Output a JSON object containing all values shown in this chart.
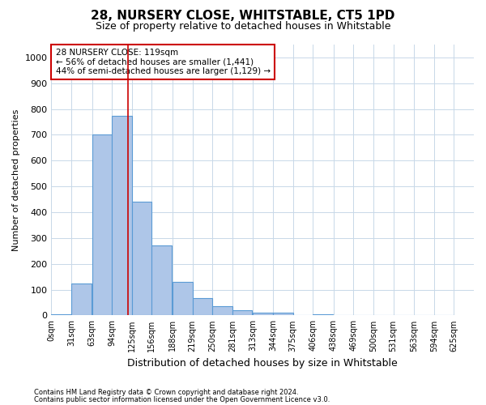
{
  "title": "28, NURSERY CLOSE, WHITSTABLE, CT5 1PD",
  "subtitle": "Size of property relative to detached houses in Whitstable",
  "xlabel": "Distribution of detached houses by size in Whitstable",
  "ylabel": "Number of detached properties",
  "footnote1": "Contains HM Land Registry data © Crown copyright and database right 2024.",
  "footnote2": "Contains public sector information licensed under the Open Government Licence v3.0.",
  "bin_labels": [
    "0sqm",
    "31sqm",
    "63sqm",
    "94sqm",
    "125sqm",
    "156sqm",
    "188sqm",
    "219sqm",
    "250sqm",
    "281sqm",
    "313sqm",
    "344sqm",
    "375sqm",
    "406sqm",
    "438sqm",
    "469sqm",
    "500sqm",
    "531sqm",
    "563sqm",
    "594sqm",
    "625sqm"
  ],
  "bar_values": [
    5,
    125,
    700,
    775,
    440,
    270,
    130,
    68,
    35,
    20,
    10,
    10,
    0,
    5,
    0,
    0,
    0,
    0,
    0,
    0
  ],
  "bar_color": "#aec6e8",
  "bar_edge_color": "#5b9bd5",
  "grid_color": "#c8d8e8",
  "vline_x": 119,
  "annotation_line1": "28 NURSERY CLOSE: 119sqm",
  "annotation_line2": "← 56% of detached houses are smaller (1,441)",
  "annotation_line3": "44% of semi-detached houses are larger (1,129) →",
  "annotation_box_color": "#ffffff",
  "annotation_box_edge_color": "#cc0000",
  "ylim": [
    0,
    1050
  ],
  "yticks": [
    0,
    100,
    200,
    300,
    400,
    500,
    600,
    700,
    800,
    900,
    1000
  ],
  "bin_edges": [
    0,
    31,
    63,
    94,
    125,
    156,
    188,
    219,
    250,
    281,
    313,
    344,
    375,
    406,
    438,
    469,
    500,
    531,
    563,
    594,
    625
  ],
  "bin_width": 31,
  "xlim_max": 656
}
